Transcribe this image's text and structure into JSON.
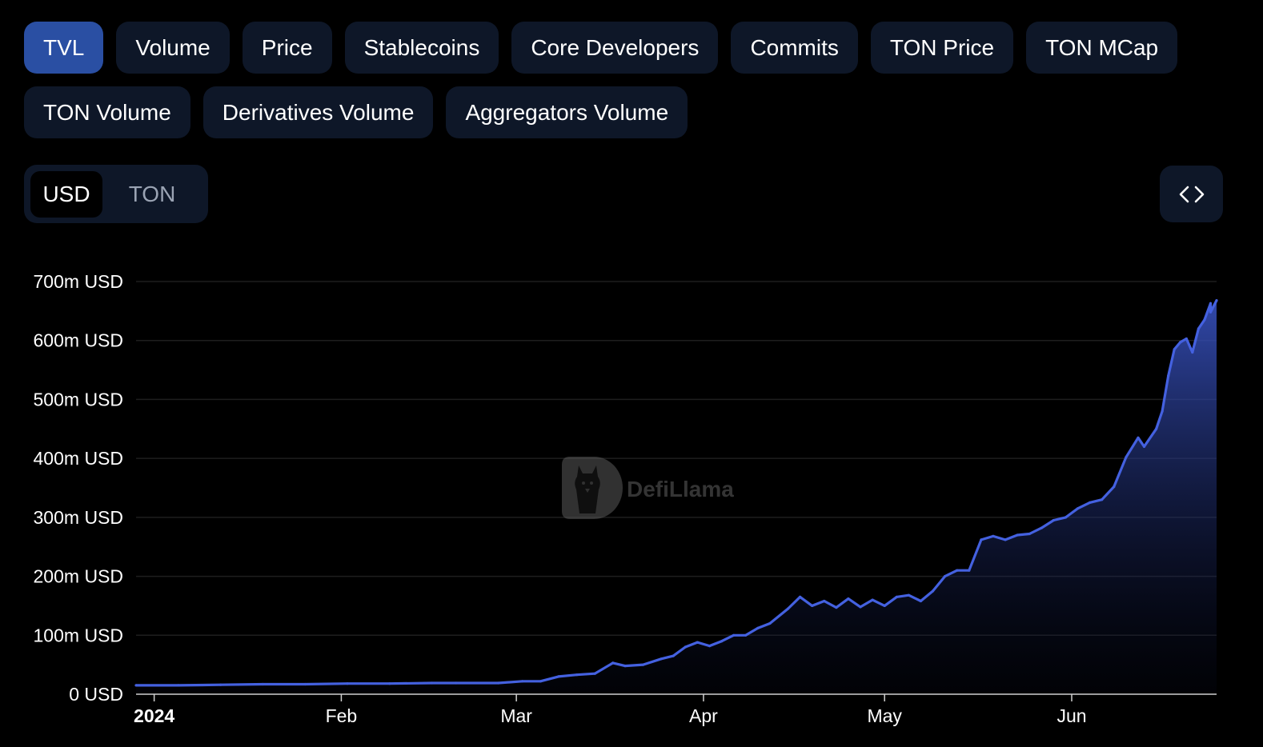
{
  "tabs": {
    "row1": [
      "TVL",
      "Volume",
      "Price",
      "Stablecoins",
      "Core Developers",
      "Commits",
      "TON Price",
      "TON MCap"
    ],
    "row2": [
      "TON Volume",
      "Derivatives Volume",
      "Aggregators Volume"
    ],
    "active": "TVL"
  },
  "currency_toggle": {
    "options": [
      "USD",
      "TON"
    ],
    "selected": "USD"
  },
  "embed_button": {
    "icon": "code-brackets-icon"
  },
  "watermark": {
    "text": "DefiLlama",
    "icon": "llama-logo-icon"
  },
  "colors": {
    "line": "#4461e0",
    "area_top": "#3a55c8",
    "tab_bg": "#0e1728",
    "tab_active": "#2a4fa3",
    "grid": "#1e1e1e"
  },
  "chart_data": {
    "type": "area",
    "xlabel": "",
    "ylabel": "",
    "y_ticks": [
      "0 USD",
      "100m USD",
      "200m USD",
      "300m USD",
      "400m USD",
      "500m USD",
      "600m USD",
      "700m USD"
    ],
    "x_ticks": [
      {
        "label": "2024",
        "date": "2024-01-01",
        "bold": true
      },
      {
        "label": "Feb",
        "date": "2024-02-01",
        "bold": false
      },
      {
        "label": "Mar",
        "date": "2024-03-01",
        "bold": false
      },
      {
        "label": "Apr",
        "date": "2024-04-01",
        "bold": false
      },
      {
        "label": "May",
        "date": "2024-05-01",
        "bold": false
      },
      {
        "label": "Jun",
        "date": "2024-06-01",
        "bold": false
      }
    ],
    "ylim": [
      0,
      700
    ],
    "xlim": [
      "2023-12-29",
      "2024-06-25"
    ],
    "grid": true,
    "series": [
      {
        "values": [
          [
            "2023-12-29",
            15
          ],
          [
            "2024-01-05",
            15
          ],
          [
            "2024-01-12",
            16
          ],
          [
            "2024-01-19",
            17
          ],
          [
            "2024-01-26",
            17
          ],
          [
            "2024-02-02",
            18
          ],
          [
            "2024-02-09",
            18
          ],
          [
            "2024-02-16",
            19
          ],
          [
            "2024-02-20",
            19
          ],
          [
            "2024-02-27",
            19
          ],
          [
            "2024-03-02",
            22
          ],
          [
            "2024-03-05",
            22
          ],
          [
            "2024-03-08",
            30
          ],
          [
            "2024-03-11",
            33
          ],
          [
            "2024-03-14",
            35
          ],
          [
            "2024-03-17",
            53
          ],
          [
            "2024-03-19",
            48
          ],
          [
            "2024-03-22",
            50
          ],
          [
            "2024-03-25",
            60
          ],
          [
            "2024-03-27",
            65
          ],
          [
            "2024-03-29",
            80
          ],
          [
            "2024-03-31",
            88
          ],
          [
            "2024-04-02",
            82
          ],
          [
            "2024-04-04",
            90
          ],
          [
            "2024-04-06",
            100
          ],
          [
            "2024-04-08",
            100
          ],
          [
            "2024-04-10",
            112
          ],
          [
            "2024-04-12",
            120
          ],
          [
            "2024-04-15",
            145
          ],
          [
            "2024-04-17",
            165
          ],
          [
            "2024-04-19",
            150
          ],
          [
            "2024-04-21",
            158
          ],
          [
            "2024-04-23",
            147
          ],
          [
            "2024-04-25",
            162
          ],
          [
            "2024-04-27",
            148
          ],
          [
            "2024-04-29",
            160
          ],
          [
            "2024-05-01",
            150
          ],
          [
            "2024-05-03",
            165
          ],
          [
            "2024-05-05",
            168
          ],
          [
            "2024-05-07",
            158
          ],
          [
            "2024-05-09",
            175
          ],
          [
            "2024-05-11",
            200
          ],
          [
            "2024-05-13",
            210
          ],
          [
            "2024-05-15",
            210
          ],
          [
            "2024-05-17",
            262
          ],
          [
            "2024-05-19",
            268
          ],
          [
            "2024-05-21",
            262
          ],
          [
            "2024-05-23",
            270
          ],
          [
            "2024-05-25",
            272
          ],
          [
            "2024-05-27",
            282
          ],
          [
            "2024-05-29",
            295
          ],
          [
            "2024-05-31",
            300
          ],
          [
            "2024-06-02",
            315
          ],
          [
            "2024-06-04",
            325
          ],
          [
            "2024-06-06",
            330
          ],
          [
            "2024-06-08",
            352
          ],
          [
            "2024-06-10",
            402
          ],
          [
            "2024-06-12",
            435
          ],
          [
            "2024-06-13",
            420
          ],
          [
            "2024-06-15",
            450
          ],
          [
            "2024-06-16",
            480
          ],
          [
            "2024-06-17",
            540
          ],
          [
            "2024-06-18",
            585
          ],
          [
            "2024-06-19",
            597
          ],
          [
            "2024-06-20",
            603
          ],
          [
            "2024-06-21",
            580
          ],
          [
            "2024-06-22",
            620
          ],
          [
            "2024-06-23",
            635
          ],
          [
            "2024-06-24",
            663
          ],
          [
            "2024-06-24",
            648
          ],
          [
            "2024-06-25",
            668
          ]
        ]
      }
    ]
  }
}
